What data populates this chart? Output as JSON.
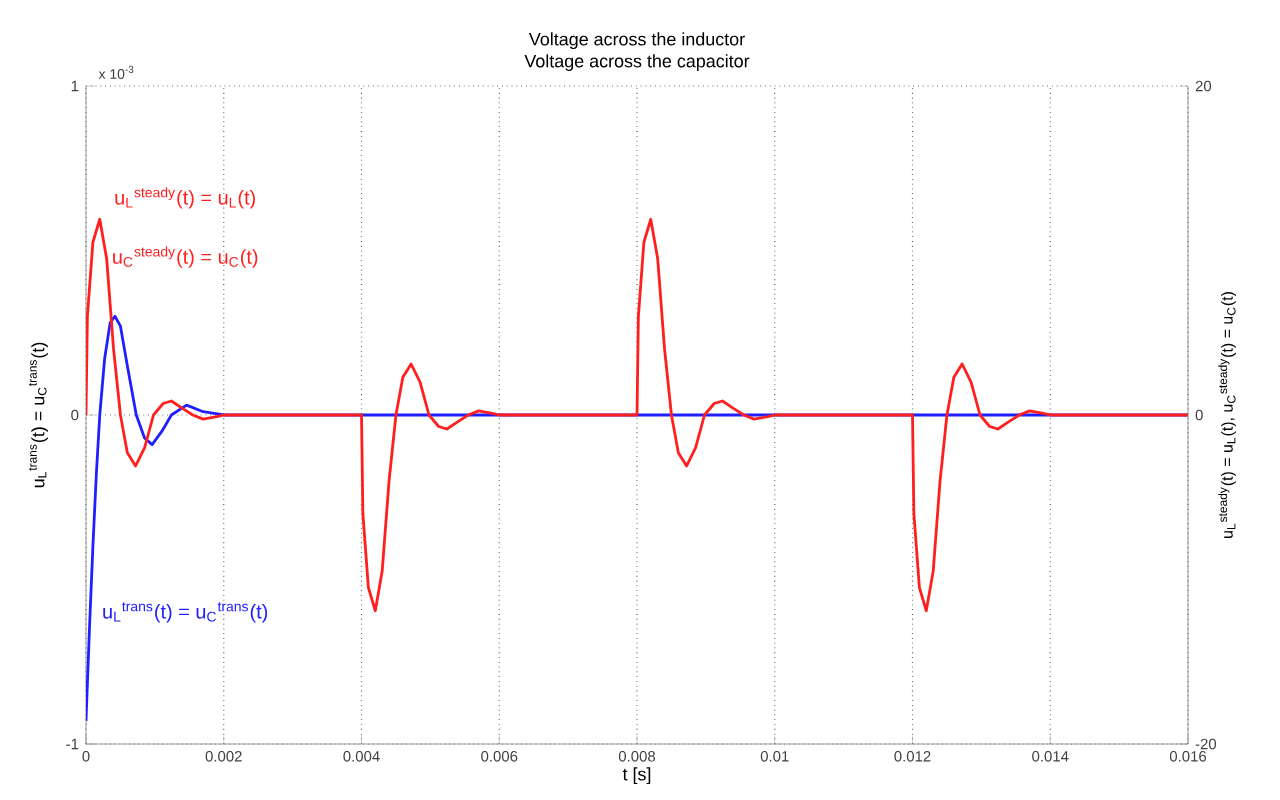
{
  "chart_data": {
    "type": "line",
    "title": "Voltage across the inductor",
    "subtitle": "Voltage across the capacitor",
    "xlabel": "t [s]",
    "ylabel": "u$_{L}$$^{trans}$(t) = u$_{C}$$^{trans}$(t)",
    "y2label": "u$_{L}$$^{steady}$(t) = u$_{L}$(t), u$_{C}$$^{steady}$(t) = u$_{C}$(t)",
    "annotations": [
      "u$_{L}$$^{steady}$(t) = u$_{L}$(t)",
      "u$_{C}$$^{steady}$(t) = u$_{C}$(t)",
      "u$_{L}$$^{trans}$(t) = u$_{C}$$^{trans}$(t)",
      "x 10$^{-3}$"
    ],
    "xlim": [
      0,
      0.016
    ],
    "xticks": [
      0,
      0.002,
      0.004,
      0.006,
      0.008,
      0.01,
      0.012,
      0.014,
      0.016
    ],
    "ylim": [
      -1,
      1
    ],
    "yticks": [
      -1,
      0,
      1
    ],
    "y2lim": [
      -20,
      20
    ],
    "y2ticks": [
      -20,
      0,
      20
    ],
    "grid": true,
    "series": [
      {
        "color": "#1f1fff",
        "axis": "y",
        "x": [
          0,
          5e-05,
          0.0001,
          0.00015,
          0.0002,
          0.00027,
          0.00035,
          0.00042,
          0.0005,
          0.0006,
          0.00073,
          0.00085,
          0.00096,
          0.0011,
          0.00124,
          0.00146,
          0.0017,
          0.002,
          0.016
        ],
        "values": [
          -0.93,
          -0.65,
          -0.4,
          -0.18,
          0,
          0.17,
          0.28,
          0.3,
          0.27,
          0.15,
          0,
          -0.07,
          -0.09,
          -0.05,
          0,
          0.03,
          0.01,
          0,
          0
        ]
      },
      {
        "color": "#ff1f1f",
        "axis": "y2",
        "x": [
          0,
          2e-05,
          0.0001,
          0.0002,
          0.0003,
          0.0004,
          0.0005,
          0.0006,
          0.00072,
          0.00085,
          0.00098,
          0.00112,
          0.00124,
          0.0014,
          0.00155,
          0.0017,
          0.0019,
          0.002,
          0.004,
          0.00402,
          0.0041,
          0.0042,
          0.0043,
          0.0044,
          0.0045,
          0.0046,
          0.00472,
          0.00485,
          0.00498,
          0.00512,
          0.00524,
          0.0054,
          0.00555,
          0.0057,
          0.0059,
          0.006,
          0.008,
          0.00802,
          0.0081,
          0.0082,
          0.0083,
          0.0084,
          0.0085,
          0.0086,
          0.00872,
          0.00885,
          0.00898,
          0.00912,
          0.00924,
          0.0094,
          0.00955,
          0.0097,
          0.0099,
          0.01,
          0.012,
          0.01202,
          0.0121,
          0.0122,
          0.0123,
          0.0124,
          0.0125,
          0.0126,
          0.01272,
          0.01285,
          0.01298,
          0.01312,
          0.01324,
          0.0134,
          0.01355,
          0.0137,
          0.0139,
          0.014,
          0.016
        ],
        "values": [
          0,
          6,
          10.5,
          11.9,
          9.5,
          4,
          0,
          -2.3,
          -3.1,
          -2,
          0,
          0.7,
          0.85,
          0.4,
          0,
          -0.25,
          -0.1,
          0,
          0,
          -6,
          -10.5,
          -11.9,
          -9.5,
          -4,
          0,
          2.3,
          3.1,
          2,
          0,
          -0.7,
          -0.85,
          -0.4,
          0,
          0.25,
          0.1,
          0,
          0,
          6,
          10.5,
          11.9,
          9.5,
          4,
          0,
          -2.3,
          -3.1,
          -2,
          0,
          0.7,
          0.85,
          0.4,
          0,
          -0.25,
          -0.1,
          0,
          0,
          -6,
          -10.5,
          -11.9,
          -9.5,
          -4,
          0,
          2.3,
          3.1,
          2,
          0,
          -0.7,
          -0.85,
          -0.4,
          0,
          0.25,
          0.1,
          0,
          0
        ]
      }
    ]
  }
}
